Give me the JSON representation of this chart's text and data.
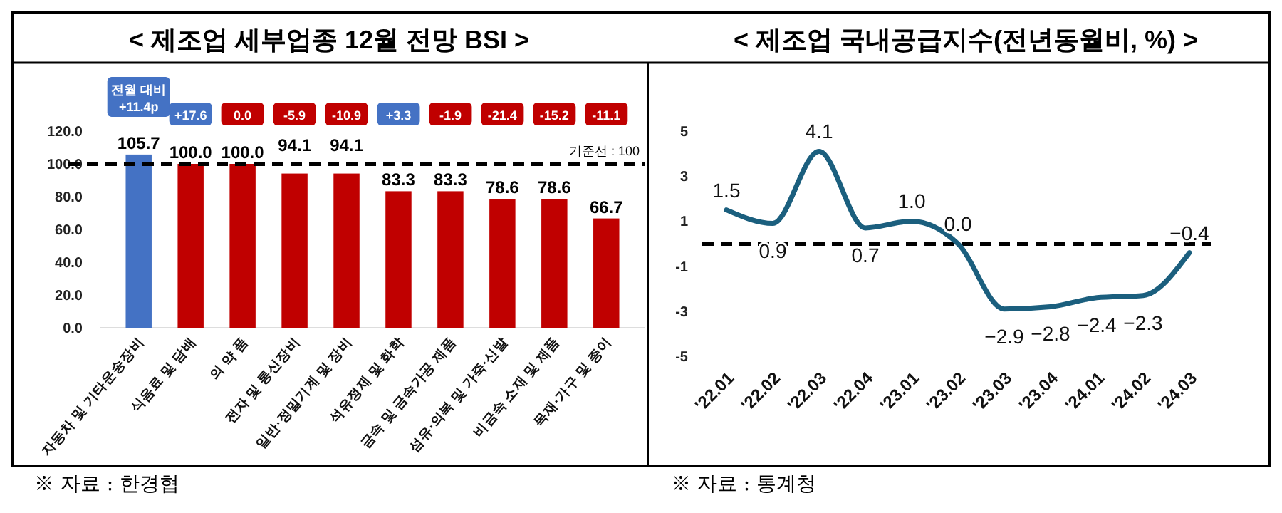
{
  "chart_data": [
    {
      "type": "bar",
      "title": "< 제조업 세부업종 12월 전망 BSI >",
      "categories": [
        "자동차 및 기타운송장비",
        "식음료 및 담배",
        "의 약 품",
        "전자 및 통신장비",
        "일반·정밀기계 및 장비",
        "석유정제 및 화학",
        "금속 및 금속가공 제품",
        "섬유·의복 및 가죽·신발",
        "비금속 소재 및 제품",
        "목재·가구 및 종이"
      ],
      "values": [
        105.7,
        100.0,
        100.0,
        94.1,
        94.1,
        83.3,
        83.3,
        78.6,
        78.6,
        66.7
      ],
      "value_labels": [
        "105.7",
        "100.0",
        "100.0",
        "94.1",
        "94.1",
        "83.3",
        "83.3",
        "78.6",
        "78.6",
        "66.7"
      ],
      "colors": [
        "#4472c4",
        "#c00000",
        "#c00000",
        "#c00000",
        "#c00000",
        "#c00000",
        "#c00000",
        "#c00000",
        "#c00000",
        "#c00000"
      ],
      "ylim": [
        0,
        120
      ],
      "yticks": [
        {
          "value": 0,
          "label": "0.0"
        },
        {
          "value": 20,
          "label": "20.0"
        },
        {
          "value": 40,
          "label": "40.0"
        },
        {
          "value": 60,
          "label": "60.0"
        },
        {
          "value": 80,
          "label": "80.0"
        },
        {
          "value": 100,
          "label": "100.0"
        },
        {
          "value": 120,
          "label": "120.0"
        }
      ],
      "ref_lines": [
        {
          "axis": "y",
          "value": 100,
          "label": "기준선 : 100",
          "color": "#000000",
          "line_style": "dashed"
        }
      ],
      "annotations": [
        "전월 대비\n+11.4p",
        "+17.6",
        "0.0",
        "-5.9",
        "-10.9",
        "+3.3",
        "-1.9",
        "-21.4",
        "-15.2",
        "-11.1",
        "※ 자료 : 한경협"
      ],
      "grid": false
    },
    {
      "type": "line",
      "title": "< 제조업 국내공급지수(전년동월비, %) >",
      "categories": [
        "'22.01",
        "'22.02",
        "'22.03",
        "'22.04",
        "'23.01",
        "'23.02",
        "'23.03",
        "'23.04",
        "'24.01",
        "'24.02",
        "'24.03"
      ],
      "series": [
        {
          "color": "#1b5f7e",
          "values": [
            1.5,
            0.9,
            4.1,
            0.7,
            1.0,
            0.0,
            -2.9,
            -2.8,
            -2.4,
            -2.3,
            -0.4
          ],
          "value_labels": [
            "1.5",
            "0.9",
            "4.1",
            "0.7",
            "1.0",
            "0.0",
            "−2.9",
            "−2.8",
            "−2.4",
            "−2.3",
            "−0.4"
          ]
        }
      ],
      "ylim": [
        -5,
        5
      ],
      "yticks": [
        -5,
        -3,
        -1,
        1,
        3,
        5
      ],
      "ref_lines": [
        {
          "axis": "y",
          "value": 0,
          "color": "#000000",
          "line_style": "dashed"
        }
      ],
      "annotations": [
        "※ 자료 : 통계청"
      ],
      "marker": "none",
      "line_style": "solid",
      "grid": false
    }
  ]
}
